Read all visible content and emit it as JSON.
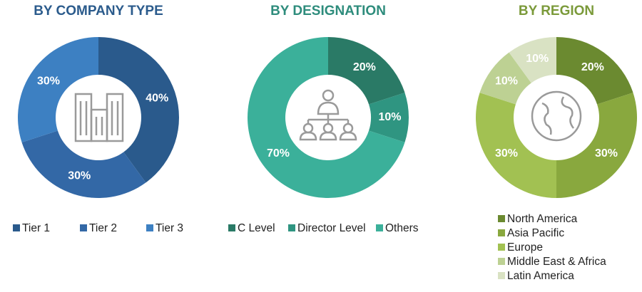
{
  "chart_data": [
    {
      "type": "pie",
      "title": "BY COMPANY TYPE",
      "title_color": "#2b5b8c",
      "categories": [
        "Tier 1",
        "Tier 2",
        "Tier 3"
      ],
      "values": [
        40,
        30,
        30
      ],
      "value_labels": [
        "40%",
        "30%",
        "30%"
      ],
      "colors": [
        "#2a5a8c",
        "#3368a6",
        "#3d80c2"
      ]
    },
    {
      "type": "pie",
      "title": "BY DESIGNATION",
      "title_color": "#2e8c7c",
      "categories": [
        "C Level",
        "Director Level",
        "Others"
      ],
      "values": [
        20,
        10,
        70
      ],
      "value_labels": [
        "20%",
        "10%",
        "70%"
      ],
      "colors": [
        "#2a7a66",
        "#2f9581",
        "#3bb09a"
      ]
    },
    {
      "type": "pie",
      "title": "BY REGION",
      "title_color": "#7b9a3a",
      "categories": [
        "North America",
        "Asia Pacific",
        "Europe",
        "Middle East & Africa",
        "Latin America"
      ],
      "values": [
        20,
        30,
        30,
        10,
        10
      ],
      "value_labels": [
        "20%",
        "30%",
        "30%",
        "10%",
        "10%"
      ],
      "colors": [
        "#6b8a30",
        "#89a83e",
        "#a2c152",
        "#bdd193",
        "#d9e2c3"
      ]
    }
  ]
}
